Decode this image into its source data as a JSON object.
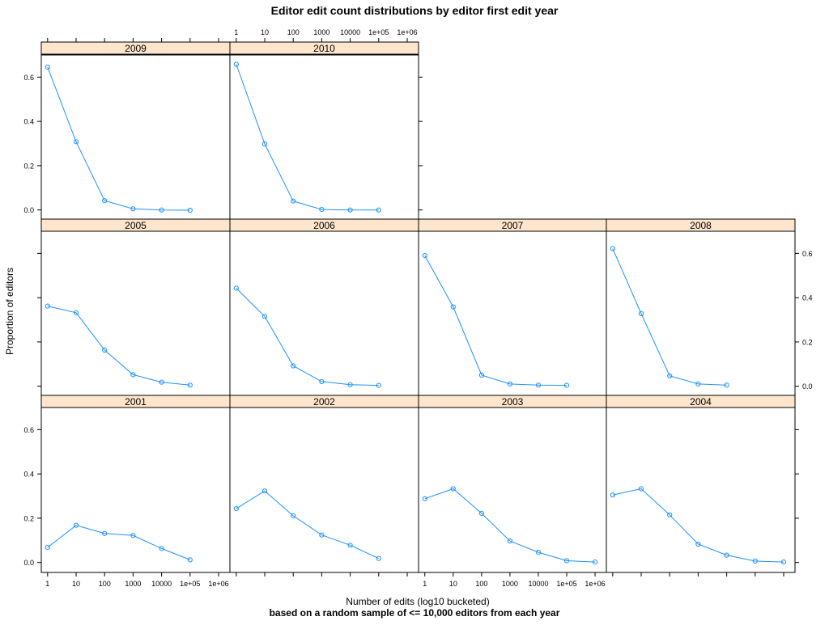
{
  "chart_data": {
    "type": "line",
    "title": "Editor edit count distributions by editor first edit year",
    "xlabel": "Number of edits (log10 bucketed)",
    "ylabel": "Proportion of editors",
    "subtitle": "based on a random sample of <= 10,000 editors from each year",
    "x_scale": "log10",
    "x_ticks": [
      "1",
      "10",
      "100",
      "1000",
      "10000",
      "1e+05",
      "1e+06"
    ],
    "y_ticks": [
      "0.0",
      "0.2",
      "0.4",
      "0.6"
    ],
    "xlim": [
      0.6,
      2500000
    ],
    "ylim": [
      -0.045,
      0.7
    ],
    "grid": false,
    "series_color": "#1e90ff",
    "strip_color": "#ffe5cc",
    "panels": [
      {
        "label": "2009",
        "x": [
          1,
          10,
          100,
          1000,
          10000,
          100000
        ],
        "values": [
          0.645,
          0.308,
          0.042,
          0.005,
          0.0,
          -0.001
        ]
      },
      {
        "label": "2010",
        "x": [
          1,
          10,
          100,
          1000,
          10000,
          100000
        ],
        "values": [
          0.658,
          0.298,
          0.04,
          0.002,
          0.0,
          0.0
        ]
      },
      {
        "label": "2005",
        "x": [
          1,
          10,
          100,
          1000,
          10000,
          100000
        ],
        "values": [
          0.362,
          0.332,
          0.163,
          0.052,
          0.018,
          0.005
        ]
      },
      {
        "label": "2006",
        "x": [
          1,
          10,
          100,
          1000,
          10000,
          100000
        ],
        "values": [
          0.443,
          0.315,
          0.092,
          0.021,
          0.007,
          0.004
        ]
      },
      {
        "label": "2007",
        "x": [
          1,
          10,
          100,
          1000,
          10000,
          100000
        ],
        "values": [
          0.59,
          0.358,
          0.05,
          0.01,
          0.005,
          0.004
        ]
      },
      {
        "label": "2008",
        "x": [
          1,
          10,
          100,
          1000,
          10000
        ],
        "values": [
          0.622,
          0.328,
          0.047,
          0.01,
          0.005
        ]
      },
      {
        "label": "2001",
        "x": [
          1,
          10,
          100,
          1000,
          10000,
          100000
        ],
        "values": [
          0.068,
          0.168,
          0.131,
          0.122,
          0.063,
          0.012
        ]
      },
      {
        "label": "2002",
        "x": [
          1,
          10,
          100,
          1000,
          10000,
          100000
        ],
        "values": [
          0.243,
          0.323,
          0.211,
          0.124,
          0.078,
          0.018
        ]
      },
      {
        "label": "2003",
        "x": [
          1,
          10,
          100,
          1000,
          10000,
          100000,
          1000000
        ],
        "values": [
          0.288,
          0.333,
          0.222,
          0.097,
          0.046,
          0.008,
          0.002
        ]
      },
      {
        "label": "2004",
        "x": [
          1,
          10,
          100,
          1000,
          10000,
          100000,
          1000000
        ],
        "values": [
          0.305,
          0.333,
          0.215,
          0.083,
          0.033,
          0.006,
          0.002
        ]
      }
    ]
  }
}
